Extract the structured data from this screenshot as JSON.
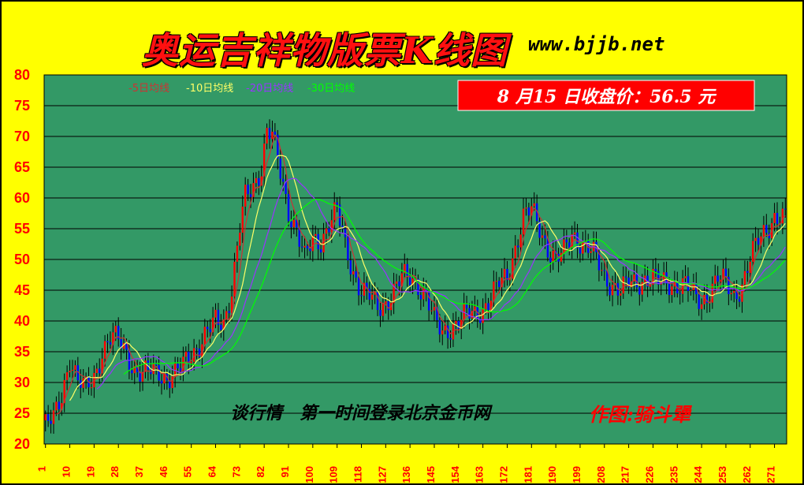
{
  "header": {
    "title": "奥运吉祥物版票K线图",
    "site": "www.bjjb.net"
  },
  "price_box": {
    "text": "8 月15 日收盘价：56.5 元"
  },
  "footer": {
    "caption": "谈行情　第一时间登录北京金币网",
    "author": "作图:骑斗犟"
  },
  "colors": {
    "background": "#ffff00",
    "plot": "#339966",
    "up": "#ff0000",
    "down": "#0000ff",
    "ma5": "#cc3333",
    "ma10": "#ffff66",
    "ma20": "#9933ff",
    "ma30": "#00ff00"
  },
  "chart_data": {
    "type": "candlestick",
    "title": "奥运吉祥物版票K线图",
    "ylim": [
      20,
      80
    ],
    "yticks": [
      20,
      25,
      30,
      35,
      40,
      45,
      50,
      55,
      60,
      65,
      70,
      75,
      80
    ],
    "xticks": [
      "1",
      "10",
      "19",
      "28",
      "37",
      "46",
      "55",
      "64",
      "73",
      "82",
      "91",
      "100",
      "109",
      "118",
      "127",
      "136",
      "145",
      "154",
      "163",
      "172",
      "181",
      "190",
      "199",
      "208",
      "217",
      "226",
      "235",
      "244",
      "253",
      "262",
      "271"
    ],
    "x_count": 275,
    "legend": [
      {
        "label": "-5日均线",
        "color": "#cc3333"
      },
      {
        "label": "-10日均线",
        "color": "#ffff66"
      },
      {
        "label": "-20日均线",
        "color": "#9933ff"
      },
      {
        "label": "-30日均线",
        "color": "#00ff00"
      }
    ],
    "anchors": [
      [
        1,
        23
      ],
      [
        4,
        24
      ],
      [
        7,
        28
      ],
      [
        10,
        34
      ],
      [
        13,
        30
      ],
      [
        16,
        29
      ],
      [
        19,
        31
      ],
      [
        22,
        35
      ],
      [
        25,
        37
      ],
      [
        28,
        37
      ],
      [
        31,
        35
      ],
      [
        34,
        32
      ],
      [
        37,
        31
      ],
      [
        40,
        32
      ],
      [
        43,
        32
      ],
      [
        46,
        30.5
      ],
      [
        49,
        31
      ],
      [
        52,
        33
      ],
      [
        55,
        35
      ],
      [
        58,
        36
      ],
      [
        61,
        38
      ],
      [
        64,
        40
      ],
      [
        67,
        40
      ],
      [
        70,
        45
      ],
      [
        73,
        55
      ],
      [
        75,
        60
      ],
      [
        78,
        62
      ],
      [
        81,
        65
      ],
      [
        83,
        71
      ],
      [
        85,
        70
      ],
      [
        88,
        64
      ],
      [
        91,
        58
      ],
      [
        94,
        55
      ],
      [
        97,
        50
      ],
      [
        100,
        53
      ],
      [
        103,
        53
      ],
      [
        106,
        56
      ],
      [
        109,
        58
      ],
      [
        112,
        52
      ],
      [
        115,
        48
      ],
      [
        118,
        45
      ],
      [
        121,
        44
      ],
      [
        124,
        42
      ],
      [
        127,
        43
      ],
      [
        130,
        45
      ],
      [
        133,
        47
      ],
      [
        136,
        47
      ],
      [
        139,
        46
      ],
      [
        142,
        44
      ],
      [
        145,
        40
      ],
      [
        148,
        38
      ],
      [
        151,
        39
      ],
      [
        154,
        40
      ],
      [
        157,
        41
      ],
      [
        160,
        41
      ],
      [
        163,
        42
      ],
      [
        166,
        44
      ],
      [
        169,
        46
      ],
      [
        172,
        47
      ],
      [
        175,
        52
      ],
      [
        178,
        57
      ],
      [
        181,
        58
      ],
      [
        184,
        55
      ],
      [
        187,
        52
      ],
      [
        190,
        50
      ],
      [
        193,
        51
      ],
      [
        196,
        54
      ],
      [
        199,
        53
      ],
      [
        202,
        52
      ],
      [
        205,
        50
      ],
      [
        208,
        47
      ],
      [
        211,
        46
      ],
      [
        214,
        45
      ],
      [
        217,
        46
      ],
      [
        220,
        46
      ],
      [
        223,
        47
      ],
      [
        226,
        47
      ],
      [
        229,
        46
      ],
      [
        232,
        46
      ],
      [
        235,
        46
      ],
      [
        238,
        46
      ],
      [
        241,
        44
      ],
      [
        244,
        43
      ],
      [
        247,
        45
      ],
      [
        250,
        47
      ],
      [
        253,
        46
      ],
      [
        256,
        44
      ],
      [
        259,
        46
      ],
      [
        262,
        50
      ],
      [
        265,
        53
      ],
      [
        268,
        55
      ],
      [
        271,
        57
      ],
      [
        275,
        56.5
      ]
    ]
  }
}
